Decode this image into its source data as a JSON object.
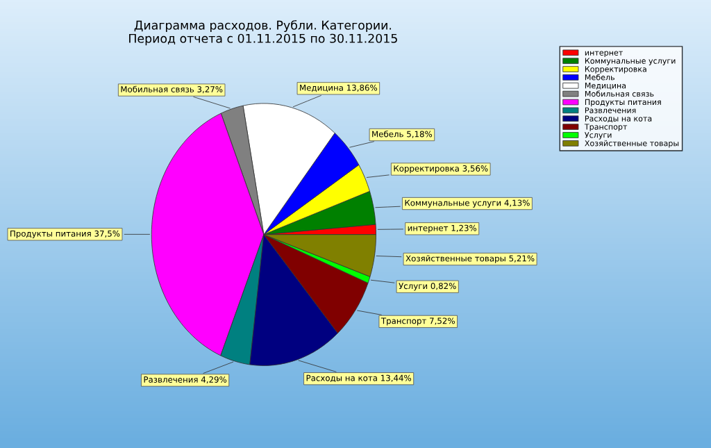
{
  "chart_data": {
    "type": "pie",
    "title": "Диаграмма расходов. Рубли. Категории.",
    "subtitle": "Период отчета с 01.11.2015 по 30.11.2015",
    "categories": [
      "интернет",
      "Коммунальные услуги",
      "Корректировка",
      "Мебель",
      "Медицина",
      "Мобильная связь",
      "Продукты питания",
      "Развлечения",
      "Расходы на кота",
      "Транспорт",
      "Услуги",
      "Хозяйственные товары"
    ],
    "values": [
      1.23,
      4.13,
      3.56,
      5.18,
      13.86,
      3.27,
      37.5,
      4.29,
      13.44,
      7.52,
      0.82,
      5.21
    ],
    "colors": [
      "#ff0000",
      "#008000",
      "#ffff00",
      "#0000ff",
      "#ffffff",
      "#808080",
      "#ff00ff",
      "#008080",
      "#000080",
      "#800000",
      "#00ff00",
      "#808000"
    ],
    "value_labels": [
      "интернет 1,23%",
      "Коммунальные услуги 4,13%",
      "Корректировка 3,56%",
      "Мебель 5,18%",
      "Медицина 13,86%",
      "Мобильная связь 3,27%",
      "Продукты питания 37,5%",
      "Развлечения 4,29%",
      "Расходы на кота 13,44%",
      "Транспорт 7,52%",
      "Услуги 0,82%",
      "Хозяйственные товары 5,21%"
    ],
    "legend": "top right"
  }
}
